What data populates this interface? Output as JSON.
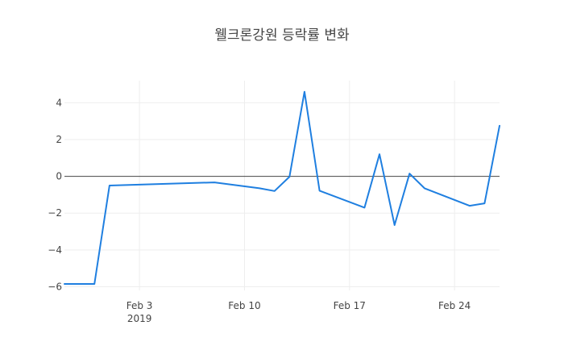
{
  "chart_data": {
    "type": "line",
    "title": "웰크론강원 등락률 변화",
    "xlabel": "",
    "ylabel": "",
    "x_range": [
      "2019-01-29",
      "2019-02-27"
    ],
    "ylim": [
      -6.2,
      5.2
    ],
    "y_ticks": [
      4,
      2,
      0,
      -2,
      -4,
      -6
    ],
    "y_tick_labels": [
      "4",
      "2",
      "0",
      "−2",
      "−4",
      "−6"
    ],
    "x_ticks": [
      {
        "date": "2019-02-03",
        "label": "Feb 3",
        "sublabel": "2019"
      },
      {
        "date": "2019-02-10",
        "label": "Feb 10",
        "sublabel": ""
      },
      {
        "date": "2019-02-17",
        "label": "Feb 17",
        "sublabel": ""
      },
      {
        "date": "2019-02-24",
        "label": "Feb 24",
        "sublabel": ""
      }
    ],
    "grid": true,
    "zero_line": true,
    "series": [
      {
        "color": "#1f7fe0",
        "points": [
          {
            "x": "2019-01-29",
            "y": -5.85
          },
          {
            "x": "2019-01-31",
            "y": -5.85
          },
          {
            "x": "2019-02-01",
            "y": -0.5
          },
          {
            "x": "2019-02-08",
            "y": -0.33
          },
          {
            "x": "2019-02-11",
            "y": -0.65
          },
          {
            "x": "2019-02-12",
            "y": -0.8
          },
          {
            "x": "2019-02-13",
            "y": -0.02
          },
          {
            "x": "2019-02-14",
            "y": 4.6
          },
          {
            "x": "2019-02-15",
            "y": -0.78
          },
          {
            "x": "2019-02-18",
            "y": -1.7
          },
          {
            "x": "2019-02-19",
            "y": 1.2
          },
          {
            "x": "2019-02-20",
            "y": -2.65
          },
          {
            "x": "2019-02-21",
            "y": 0.15
          },
          {
            "x": "2019-02-22",
            "y": -0.65
          },
          {
            "x": "2019-02-25",
            "y": -1.6
          },
          {
            "x": "2019-02-26",
            "y": -1.47
          },
          {
            "x": "2019-02-27",
            "y": 2.75
          }
        ]
      }
    ]
  }
}
